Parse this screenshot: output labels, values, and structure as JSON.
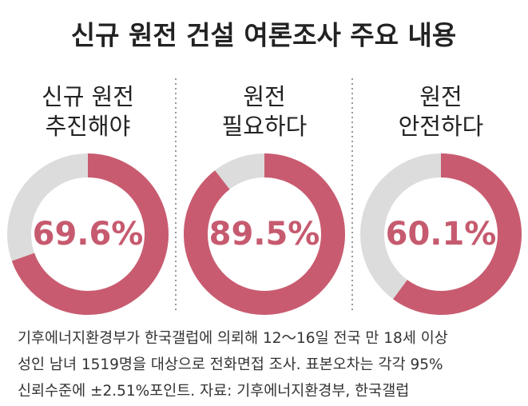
{
  "title": "신규 원전 건설 여론조사 주요 내용",
  "chart_data": [
    {
      "type": "donut",
      "title": [
        "신규 원전",
        "추진해야"
      ],
      "values": [
        69.6
      ],
      "value_labels": [
        "69.6%"
      ],
      "color": "#c95b70",
      "track_color": "#dcdcdc"
    },
    {
      "type": "donut",
      "title": [
        "원전",
        "필요하다"
      ],
      "values": [
        89.5
      ],
      "value_labels": [
        "89.5%"
      ],
      "color": "#c95b70",
      "track_color": "#dcdcdc"
    },
    {
      "type": "donut",
      "title": [
        "원전",
        "안전하다"
      ],
      "values": [
        60.1
      ],
      "value_labels": [
        "60.1%"
      ],
      "color": "#c95b70",
      "track_color": "#dcdcdc"
    }
  ],
  "note": [
    "기후에너지환경부가 한국갤럽에 의뢰해 12～16일 전국 만 18세 이상",
    "성인 남녀 1519명을 대상으로 전화면접 조사. 표본오차는 각각 95%",
    "신뢰수준에 ±2.51%포인트. 자료: 기후에너지환경부, 한국갤럽"
  ]
}
